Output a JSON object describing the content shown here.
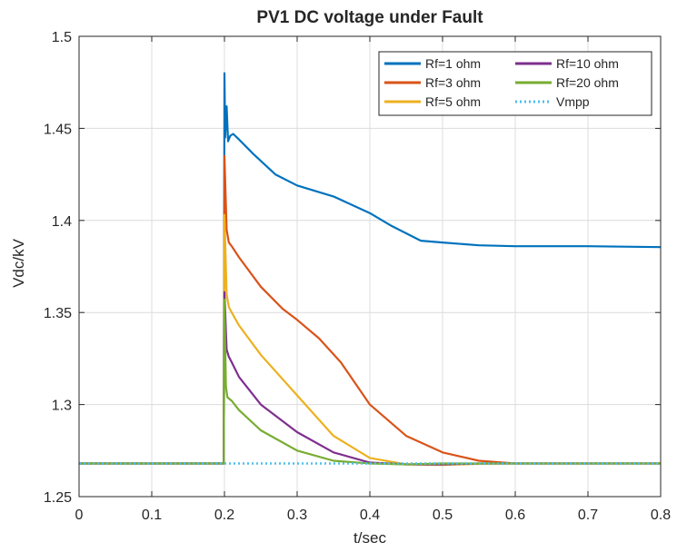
{
  "chart_data": {
    "type": "line",
    "title": "PV1 DC voltage under Fault",
    "xlabel": "t/sec",
    "ylabel": "Vdc/kV",
    "xlim": [
      0,
      0.8
    ],
    "ylim": [
      1.25,
      1.5
    ],
    "xticks": [
      "0",
      "0.1",
      "0.2",
      "0.3",
      "0.4",
      "0.5",
      "0.6",
      "0.7",
      "0.8"
    ],
    "yticks": [
      "1.25",
      "1.3",
      "1.35",
      "1.4",
      "1.45",
      "1.5"
    ],
    "grid": true,
    "legend_position": "top-right",
    "series": [
      {
        "name": "Rf=1 ohm",
        "color": "#0072bd",
        "dash": "solid",
        "x": [
          0,
          0.199,
          0.2,
          0.201,
          0.203,
          0.205,
          0.208,
          0.212,
          0.22,
          0.24,
          0.27,
          0.3,
          0.35,
          0.4,
          0.43,
          0.45,
          0.47,
          0.5,
          0.55,
          0.6,
          0.7,
          0.8
        ],
        "y": [
          1.268,
          1.268,
          1.48,
          1.445,
          1.462,
          1.443,
          1.446,
          1.447,
          1.444,
          1.436,
          1.425,
          1.419,
          1.413,
          1.404,
          1.397,
          1.393,
          1.389,
          1.388,
          1.3865,
          1.386,
          1.386,
          1.3855
        ]
      },
      {
        "name": "Rf=3 ohm",
        "color": "#d95319",
        "dash": "solid",
        "x": [
          0,
          0.199,
          0.2,
          0.203,
          0.206,
          0.21,
          0.22,
          0.25,
          0.28,
          0.3,
          0.33,
          0.36,
          0.4,
          0.45,
          0.5,
          0.55,
          0.6,
          0.7,
          0.8
        ],
        "y": [
          1.268,
          1.268,
          1.435,
          1.395,
          1.388,
          1.386,
          1.38,
          1.364,
          1.352,
          1.346,
          1.336,
          1.323,
          1.3,
          1.283,
          1.274,
          1.2695,
          1.268,
          1.268,
          1.268
        ]
      },
      {
        "name": "Rf=5 ohm",
        "color": "#edb120",
        "dash": "solid",
        "x": [
          0,
          0.199,
          0.2,
          0.203,
          0.206,
          0.21,
          0.22,
          0.25,
          0.3,
          0.35,
          0.4,
          0.45,
          0.5,
          0.55,
          0.6,
          0.8
        ],
        "y": [
          1.268,
          1.268,
          1.403,
          1.36,
          1.353,
          1.35,
          1.343,
          1.327,
          1.305,
          1.283,
          1.271,
          1.2675,
          1.2672,
          1.2678,
          1.268,
          1.268
        ]
      },
      {
        "name": "Rf=10 ohm",
        "color": "#7e2f8e",
        "dash": "solid",
        "x": [
          0,
          0.199,
          0.2,
          0.203,
          0.206,
          0.21,
          0.22,
          0.25,
          0.3,
          0.35,
          0.4,
          0.45,
          0.5,
          0.55,
          0.6,
          0.8
        ],
        "y": [
          1.268,
          1.268,
          1.361,
          1.33,
          1.326,
          1.323,
          1.315,
          1.3,
          1.285,
          1.274,
          1.2685,
          1.2675,
          1.2675,
          1.268,
          1.268,
          1.268
        ]
      },
      {
        "name": "Rf=20 ohm",
        "color": "#77ac30",
        "dash": "solid",
        "x": [
          0,
          0.199,
          0.2,
          0.202,
          0.204,
          0.207,
          0.21,
          0.22,
          0.25,
          0.3,
          0.35,
          0.4,
          0.45,
          0.5,
          0.8
        ],
        "y": [
          1.268,
          1.268,
          1.357,
          1.31,
          1.304,
          1.303,
          1.302,
          1.297,
          1.286,
          1.275,
          1.2695,
          1.268,
          1.2675,
          1.268,
          1.268
        ]
      },
      {
        "name": "Vmpp",
        "color": "#4dbeee",
        "dash": "dotted",
        "x": [
          0,
          0.8
        ],
        "y": [
          1.268,
          1.268
        ]
      }
    ]
  }
}
